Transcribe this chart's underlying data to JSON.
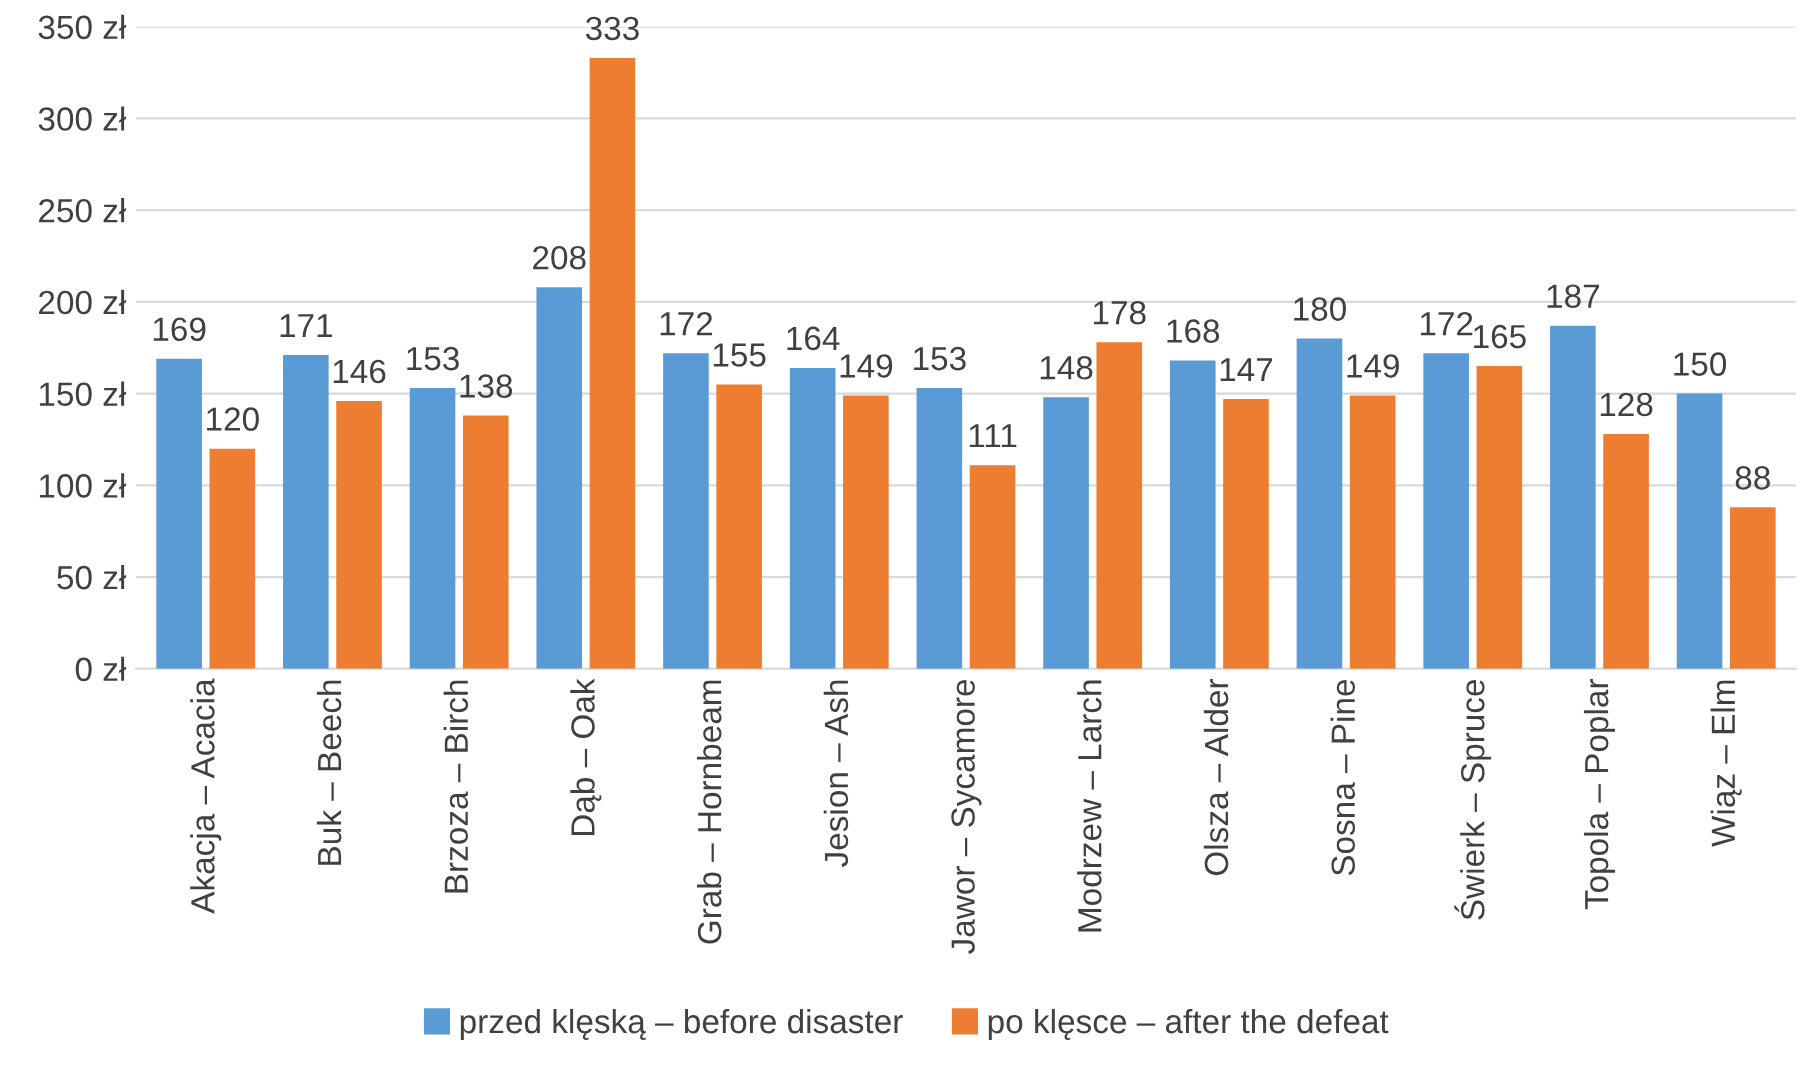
{
  "chart_data": {
    "type": "bar",
    "categories": [
      "Akacja – Acacia",
      "Buk – Beech",
      "Brzoza – Birch",
      "Dąb – Oak",
      "Grab – Hornbeam",
      "Jesion – Ash",
      "Jawor – Sycamore",
      "Modrzew – Larch",
      "Olsza – Alder",
      "Sosna – Pine",
      "Świerk – Spruce",
      "Topola – Poplar",
      "Wiąz – Elm"
    ],
    "series": [
      {
        "name": "przed klęską – before disaster",
        "color": "#5b9bd5",
        "values": [
          169,
          171,
          153,
          208,
          172,
          164,
          153,
          148,
          168,
          180,
          172,
          187,
          150
        ]
      },
      {
        "name": "po klęsce – after the defeat",
        "color": "#ed7d31",
        "values": [
          120,
          146,
          138,
          333,
          155,
          149,
          111,
          178,
          147,
          149,
          165,
          128,
          88
        ]
      }
    ],
    "ylim": [
      0,
      350
    ],
    "yticks": [
      {
        "value": 0,
        "label": "0 zł"
      },
      {
        "value": 50,
        "label": "50 zł"
      },
      {
        "value": 100,
        "label": "100 zł"
      },
      {
        "value": 150,
        "label": "150 zł"
      },
      {
        "value": 200,
        "label": "200 zł"
      },
      {
        "value": 250,
        "label": "250 zł"
      },
      {
        "value": 300,
        "label": "300 zł"
      },
      {
        "value": 350,
        "label": "350 zł"
      }
    ],
    "grid": "y",
    "legend": "bottom",
    "data_labels": true
  }
}
